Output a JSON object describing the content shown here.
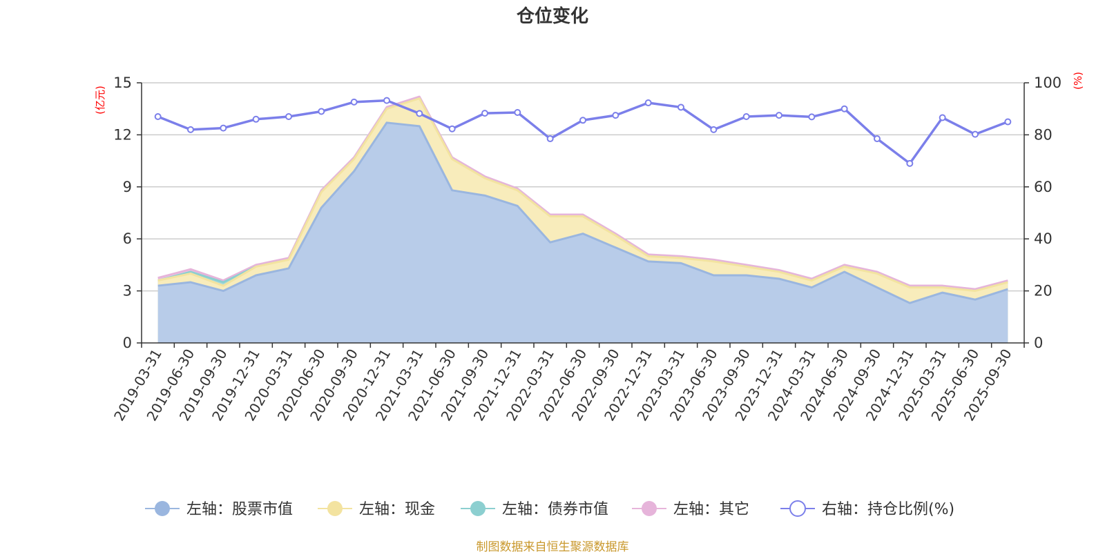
{
  "chart_data": {
    "type": "area",
    "title": "仓位变化",
    "left_axis_unit": "(亿元)",
    "right_axis_unit": "(%)",
    "left_ylim": [
      0,
      15
    ],
    "left_ticks": [
      "0",
      "3",
      "6",
      "9",
      "12",
      "15"
    ],
    "right_ylim": [
      0,
      100
    ],
    "right_ticks": [
      "0",
      "20",
      "40",
      "60",
      "80",
      "100"
    ],
    "categories": [
      "2019-03-31",
      "2019-06-30",
      "2019-09-30",
      "2019-12-31",
      "2020-03-31",
      "2020-06-30",
      "2020-09-30",
      "2020-12-31",
      "2021-03-31",
      "2021-06-30",
      "2021-09-30",
      "2021-12-31",
      "2022-03-31",
      "2022-06-30",
      "2022-09-30",
      "2022-12-31",
      "2023-03-31",
      "2023-06-30",
      "2023-09-30",
      "2023-12-31",
      "2024-03-31",
      "2024-06-30",
      "2024-09-30",
      "2024-12-31",
      "2025-03-31",
      "2025-06-30",
      "2025-09-30"
    ],
    "series": [
      {
        "name": "左轴：股票市值",
        "axis": "left",
        "stack": true,
        "color": "#9ab6df",
        "fill": "#b8cce9",
        "values": [
          3.3,
          3.5,
          3.0,
          3.9,
          4.3,
          7.8,
          9.9,
          12.7,
          12.5,
          8.8,
          8.5,
          7.9,
          5.8,
          6.3,
          5.5,
          4.7,
          4.6,
          3.9,
          3.9,
          3.7,
          3.2,
          4.1,
          3.2,
          2.3,
          2.9,
          2.5,
          3.1
        ]
      },
      {
        "name": "左轴：现金",
        "axis": "left",
        "stack": true,
        "color": "#f3e3a0",
        "fill": "#f8ecbb",
        "values": [
          0.3,
          0.5,
          0.3,
          0.5,
          0.5,
          0.9,
          0.7,
          0.8,
          1.6,
          1.8,
          1.0,
          0.9,
          1.5,
          1.0,
          0.7,
          0.3,
          0.3,
          0.8,
          0.5,
          0.4,
          0.4,
          0.3,
          0.8,
          0.9,
          0.3,
          0.5,
          0.4
        ]
      },
      {
        "name": "左轴：债券市值",
        "axis": "left",
        "stack": true,
        "color": "#8ccfd0",
        "fill": "#a5dadb",
        "values": [
          0,
          0.1,
          0.2,
          0,
          0,
          0,
          0,
          0,
          0,
          0,
          0,
          0,
          0,
          0,
          0,
          0,
          0,
          0,
          0,
          0,
          0,
          0,
          0,
          0,
          0,
          0,
          0
        ]
      },
      {
        "name": "左轴：其它",
        "axis": "left",
        "stack": true,
        "color": "#e6b4da",
        "fill": "#eec7e5",
        "values": [
          0.15,
          0.15,
          0.1,
          0.1,
          0.1,
          0.1,
          0.1,
          0.1,
          0.1,
          0.1,
          0.1,
          0.1,
          0.1,
          0.1,
          0.1,
          0.1,
          0.1,
          0.1,
          0.1,
          0.1,
          0.1,
          0.1,
          0.1,
          0.1,
          0.1,
          0.1,
          0.1
        ]
      },
      {
        "name": "右轴：持仓比例(%)",
        "axis": "right",
        "stack": false,
        "color": "#7b7fea",
        "values": [
          87.0,
          82.0,
          82.6,
          86.0,
          87.0,
          89.0,
          92.6,
          93.2,
          88.2,
          82.3,
          88.3,
          88.6,
          78.5,
          85.6,
          87.5,
          92.3,
          90.6,
          82.0,
          87.0,
          87.5,
          86.9,
          90.0,
          78.5,
          69.0,
          86.6,
          80.2,
          85.0
        ]
      }
    ],
    "source_note": "制图数据来自恒生聚源数据库"
  }
}
